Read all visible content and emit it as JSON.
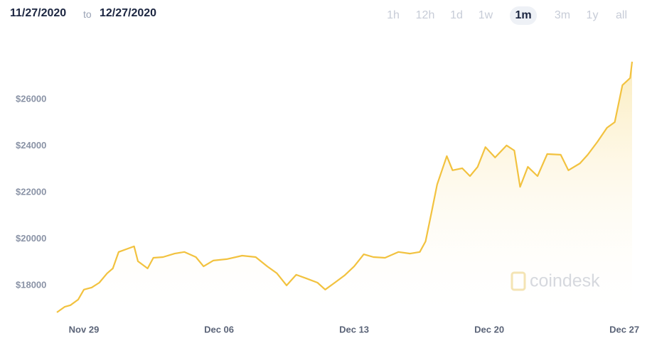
{
  "header": {
    "from": "11/27/2020",
    "to_word": "to",
    "to": "12/27/2020"
  },
  "ranges": [
    "1h",
    "12h",
    "1d",
    "1w",
    "1m",
    "3m",
    "1y",
    "all"
  ],
  "selected_range": "1m",
  "watermark": "coindesk",
  "chart_data": {
    "type": "line",
    "color": "#f2c23f",
    "x": [
      0.6,
      1.0,
      1.3,
      1.7,
      2.0,
      2.4,
      2.8,
      3.2,
      3.5,
      3.8,
      4.3,
      4.6,
      4.8,
      5.3,
      5.6,
      6.1,
      6.7,
      7.2,
      7.8,
      8.2,
      8.7,
      9.4,
      10.2,
      10.9,
      11.5,
      12.0,
      12.5,
      13.0,
      13.5,
      14.1,
      14.5,
      15.0,
      15.5,
      16.0,
      16.5,
      17.0,
      17.6,
      18.3,
      18.9,
      19.4,
      19.7,
      20.0,
      20.3,
      20.8,
      21.1,
      21.6,
      22.0,
      22.4,
      22.8,
      23.3,
      23.9,
      24.3,
      24.6,
      25.0,
      25.5,
      26.0,
      26.7,
      27.1,
      27.7,
      28.1,
      28.6,
      29.1,
      29.5,
      29.9,
      30.3,
      30.4
    ],
    "values": [
      16840,
      17080,
      17150,
      17390,
      17820,
      17910,
      18120,
      18520,
      18730,
      19440,
      19590,
      19680,
      19040,
      18730,
      19190,
      19220,
      19370,
      19440,
      19220,
      18820,
      19070,
      19130,
      19280,
      19220,
      18820,
      18520,
      18000,
      18460,
      18310,
      18120,
      17820,
      18120,
      18430,
      18820,
      19340,
      19220,
      19190,
      19440,
      19370,
      19440,
      19890,
      21110,
      22340,
      23560,
      22950,
      23040,
      22700,
      23100,
      23950,
      23500,
      24020,
      23800,
      22240,
      23100,
      22700,
      23650,
      23620,
      22950,
      23250,
      23620,
      24170,
      24780,
      25020,
      26610,
      26920,
      27620
    ],
    "xlim": [
      0.6,
      30.4
    ],
    "xticks": [
      {
        "value": 2,
        "label": "Nov 29"
      },
      {
        "value": 9,
        "label": "Dec 06"
      },
      {
        "value": 16,
        "label": "Dec 13"
      },
      {
        "value": 23,
        "label": "Dec 20"
      },
      {
        "value": 30,
        "label": "Dec 27"
      }
    ],
    "ylim": [
      16380,
      28440
    ],
    "yticks": [
      {
        "value": 18000,
        "label": "$18000"
      },
      {
        "value": 20000,
        "label": "$20000"
      },
      {
        "value": 22000,
        "label": "$22000"
      },
      {
        "value": 24000,
        "label": "$24000"
      },
      {
        "value": 26000,
        "label": "$26000"
      }
    ]
  }
}
